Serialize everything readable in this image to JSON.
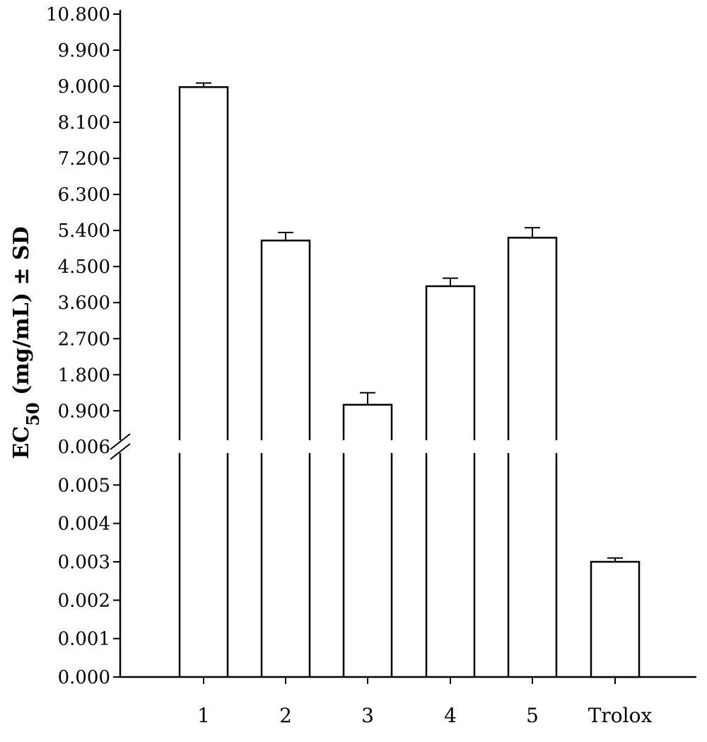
{
  "chart_data": {
    "type": "bar",
    "title": "",
    "xlabel": "",
    "ylabel": {
      "prefix": "EC",
      "subscript": "50",
      "suffix": " (mg/mL) ± SD"
    },
    "axis_break": true,
    "categories": [
      "1",
      "2",
      "3",
      "4",
      "5",
      "Trolox"
    ],
    "values": [
      8.98,
      5.15,
      1.05,
      4.01,
      5.22,
      0.003
    ],
    "errors": [
      0.1,
      0.2,
      0.3,
      0.2,
      0.25,
      0.0001
    ],
    "y_upper_segment": {
      "range": [
        0.006,
        10.8
      ],
      "ticks": [
        "0.900",
        "1.800",
        "2.700",
        "3.600",
        "4.500",
        "5.400",
        "6.300",
        "7.200",
        "8.100",
        "9.000",
        "9.900",
        "10.800"
      ]
    },
    "y_lower_segment": {
      "range": [
        0,
        0.006
      ],
      "ticks": [
        "0.000",
        "0.001",
        "0.002",
        "0.003",
        "0.004",
        "0.005",
        "0.006"
      ]
    },
    "bar_fill": "#ffffff",
    "stroke_color": "#000000",
    "grid": false,
    "legend": "none"
  }
}
